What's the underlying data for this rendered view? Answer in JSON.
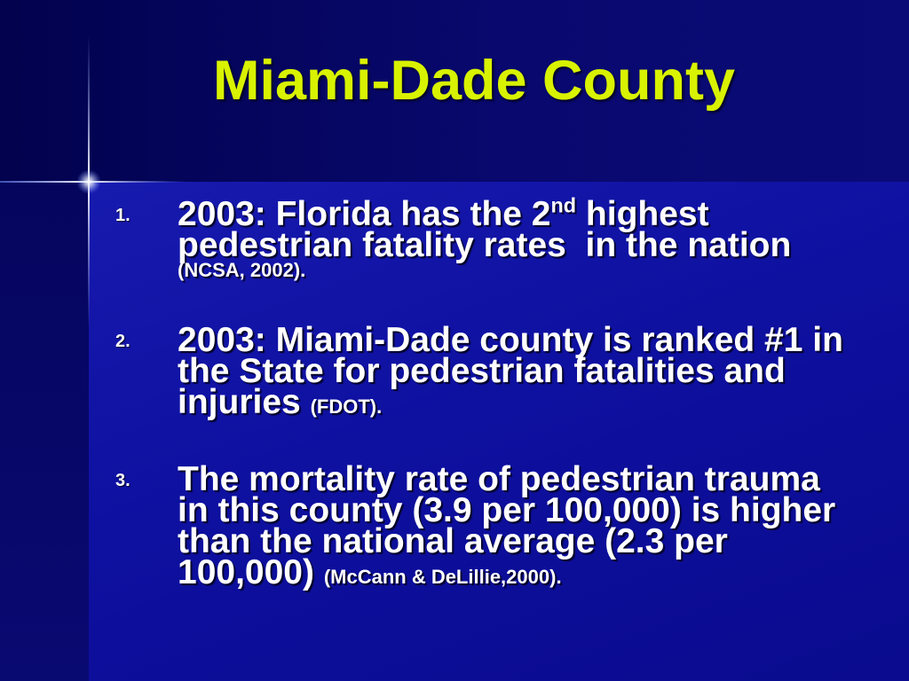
{
  "slide": {
    "title": "Miami-Dade County",
    "items": [
      {
        "number": "1.",
        "text": "2003: Florida has the 2",
        "superscript": "nd",
        "text_after_superscript": " highest pedestrian fatality rates  in the nation",
        "citation": "(NCSA, 2002)."
      },
      {
        "number": "2.",
        "text": "2003: Miami-Dade county is ranked #1 in the State for pedestrian fatalities and injuries",
        "citation": "(FDOT)."
      },
      {
        "number": "3.",
        "text": "The mortality rate of pedestrian trauma in this county (3.9 per 100,000) is higher than the national average (2.3 per 100,000)",
        "citation": "(McCann & DeLillie,2000)."
      }
    ]
  },
  "colors": {
    "title": "#d8f200",
    "text": "#ffffff",
    "background_top": "#08086e",
    "background_left": "#05055e",
    "background_main": "#0e10a0",
    "sparkle": "#ffffff"
  }
}
